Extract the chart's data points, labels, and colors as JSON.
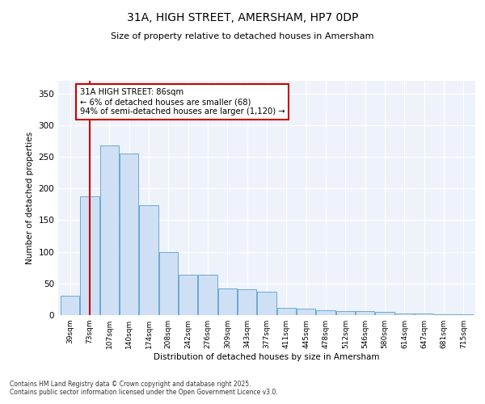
{
  "title1": "31A, HIGH STREET, AMERSHAM, HP7 0DP",
  "title2": "Size of property relative to detached houses in Amersham",
  "xlabel": "Distribution of detached houses by size in Amersham",
  "ylabel": "Number of detached properties",
  "bar_color": "#cfe0f5",
  "bar_edge_color": "#6aaad4",
  "background_color": "#eef2fa",
  "annotation_box_text": "31A HIGH STREET: 86sqm\n← 6% of detached houses are smaller (68)\n94% of semi-detached houses are larger (1,120) →",
  "vline_x": 1,
  "vline_color": "#cc0000",
  "categories": [
    "39sqm",
    "73sqm",
    "107sqm",
    "140sqm",
    "174sqm",
    "208sqm",
    "242sqm",
    "276sqm",
    "309sqm",
    "343sqm",
    "377sqm",
    "411sqm",
    "445sqm",
    "478sqm",
    "512sqm",
    "546sqm",
    "580sqm",
    "614sqm",
    "647sqm",
    "681sqm",
    "715sqm"
  ],
  "values": [
    30,
    188,
    268,
    255,
    173,
    99,
    64,
    64,
    42,
    41,
    37,
    12,
    10,
    8,
    7,
    6,
    5,
    3,
    2,
    1,
    1
  ],
  "ylim": [
    0,
    370
  ],
  "yticks": [
    0,
    50,
    100,
    150,
    200,
    250,
    300,
    350
  ],
  "footer_line1": "Contains HM Land Registry data © Crown copyright and database right 2025.",
  "footer_line2": "Contains public sector information licensed under the Open Government Licence v3.0."
}
